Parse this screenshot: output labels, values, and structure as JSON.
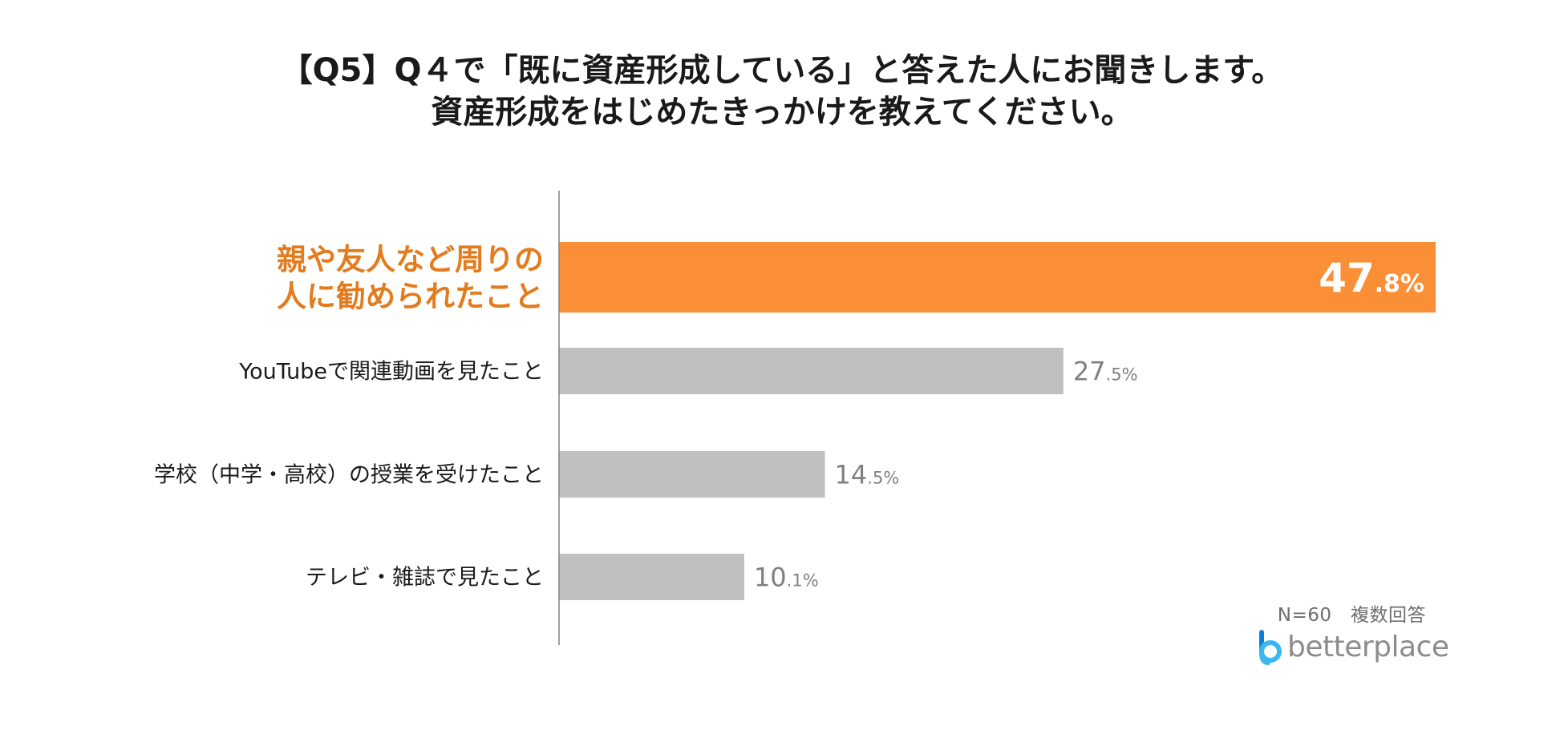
{
  "title_lines": [
    "【Q5】Q４で「既に資産形成している」と答えた人にお聞きします。",
    "資産形成をはじめたきっかけを教えてください。"
  ],
  "note": "N=60　複数回答",
  "logo": {
    "text": "betterplace",
    "icon": "betterplace-logo-icon",
    "colors": [
      "#3bb8f0",
      "#0a7fd8"
    ]
  },
  "colors": {
    "highlight": "#fa8f37",
    "highlight_text": "#e47b1c",
    "bar": "#c0c0c0",
    "value_text": "#808080",
    "axis": "#808080"
  },
  "chart_data": {
    "type": "bar",
    "orientation": "horizontal",
    "categories": [
      "親や友人など周りの人に勧められたこと",
      "YouTubeで関連動画を見たこと",
      "学校（中学・高校）の授業を受けたこと",
      "テレビ・雑誌で見たこと"
    ],
    "category_label_lines": [
      [
        "親や友人など周りの",
        "人に勧められたこと"
      ],
      [
        "YouTubeで関連動画を見たこと"
      ],
      [
        "学校（中学・高校）の授業を受けたこと"
      ],
      [
        "テレビ・雑誌で見たこと"
      ]
    ],
    "values": [
      47.8,
      27.5,
      14.5,
      10.1
    ],
    "value_labels": [
      {
        "int": "47",
        "dec": ".8%"
      },
      {
        "int": "27",
        "dec": ".5%"
      },
      {
        "int": "14",
        "dec": ".5%"
      },
      {
        "int": "10",
        "dec": ".1%"
      }
    ],
    "highlight_index": 0,
    "unit": "%"
  }
}
